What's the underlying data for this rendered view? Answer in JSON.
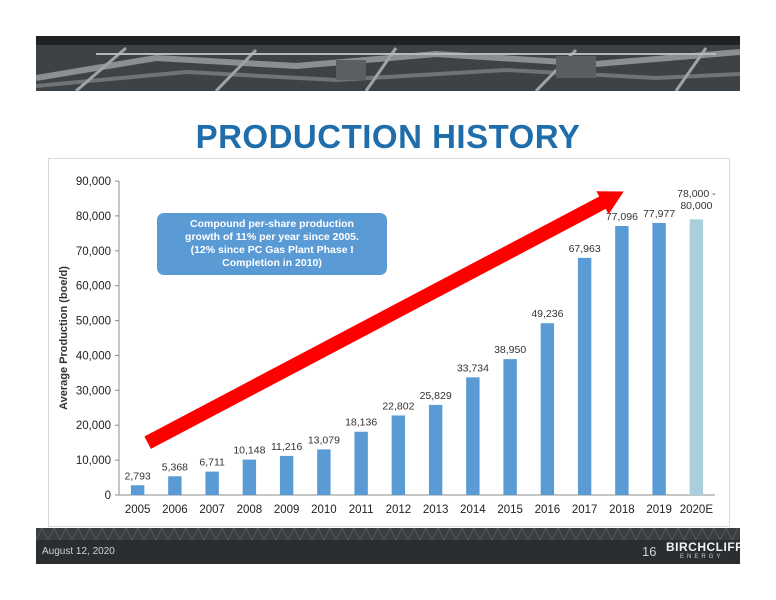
{
  "page": {
    "title": "PRODUCTION HISTORY",
    "footer_date": "August 12, 2020",
    "page_number": "16",
    "logo_name": "BIRCHCLIFF",
    "logo_sub": "ENERGY"
  },
  "chart_data": {
    "type": "bar",
    "ylabel": "Average Production (boe/d)",
    "ylim": [
      0,
      90000
    ],
    "yticks": [
      "0",
      "10,000",
      "20,000",
      "30,000",
      "40,000",
      "50,000",
      "60,000",
      "70,000",
      "80,000",
      "90,000"
    ],
    "categories": [
      "2005",
      "2006",
      "2007",
      "2008",
      "2009",
      "2010",
      "2011",
      "2012",
      "2013",
      "2014",
      "2015",
      "2016",
      "2017",
      "2018",
      "2019",
      "2020E"
    ],
    "values": [
      2793,
      5368,
      6711,
      10148,
      11216,
      13079,
      18136,
      22802,
      25829,
      33734,
      38950,
      49236,
      67963,
      77096,
      77977,
      79000
    ],
    "data_labels": [
      "2,793",
      "5,368",
      "6,711",
      "10,148",
      "11,216",
      "13,079",
      "18,136",
      "22,802",
      "25,829",
      "33,734",
      "38,950",
      "49,236",
      "67,963",
      "77,096",
      "77,977",
      "78,000 -\n80,000"
    ],
    "guidance_range": [
      78000,
      80000
    ],
    "annotation": "Compound per-share production growth of 11% per year since 2005. (12% since PC Gas Plant Phase I Completion in 2010)",
    "annotation_lines": [
      "Compound per-share production",
      "growth of 11% per year since 2005.",
      "(12% since PC Gas Plant Phase I",
      "Completion in 2010)"
    ],
    "grid": false,
    "colors": {
      "bar": "#5b9bd5",
      "forecast_bar": "#a9cfdd",
      "arrow": "#ff0000",
      "annotation_box": "#5b9bd5",
      "title": "#1f6eab"
    }
  }
}
